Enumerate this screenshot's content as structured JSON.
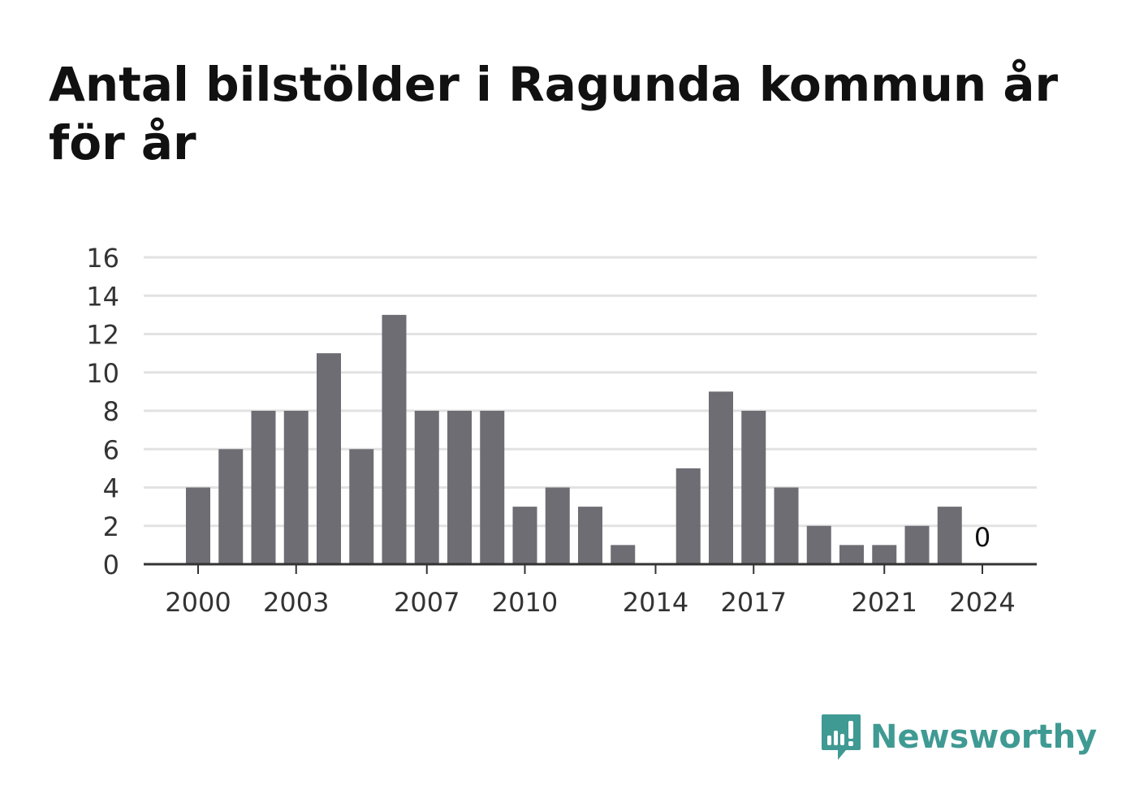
{
  "title": "Antal bilstölder i Ragunda kommun år för år",
  "brand": {
    "name": "Newsworthy",
    "icon": "newsworthy-logo-icon",
    "color": "#3f9a93"
  },
  "chart_data": {
    "type": "bar",
    "title": "Antal bilstölder i Ragunda kommun år för år",
    "xlabel": "",
    "ylabel": "",
    "categories": [
      2000,
      2001,
      2002,
      2003,
      2004,
      2005,
      2006,
      2007,
      2008,
      2009,
      2010,
      2011,
      2012,
      2013,
      2014,
      2015,
      2016,
      2017,
      2018,
      2019,
      2020,
      2021,
      2022,
      2023,
      2024
    ],
    "values": [
      4,
      6,
      8,
      8,
      11,
      6,
      13,
      8,
      8,
      8,
      3,
      4,
      3,
      1,
      0,
      5,
      9,
      8,
      4,
      2,
      1,
      1,
      2,
      3,
      0
    ],
    "x_tick_labels": [
      "2000",
      "2003",
      "2007",
      "2010",
      "2014",
      "2017",
      "2021",
      "2024"
    ],
    "y_ticks": [
      0,
      2,
      4,
      6,
      8,
      10,
      12,
      14,
      16
    ],
    "ylim": [
      0,
      16
    ],
    "annotations": [
      {
        "category": 2024,
        "text": "0"
      }
    ],
    "bar_color": "#6e6d73",
    "grid": true,
    "legend": "none"
  }
}
